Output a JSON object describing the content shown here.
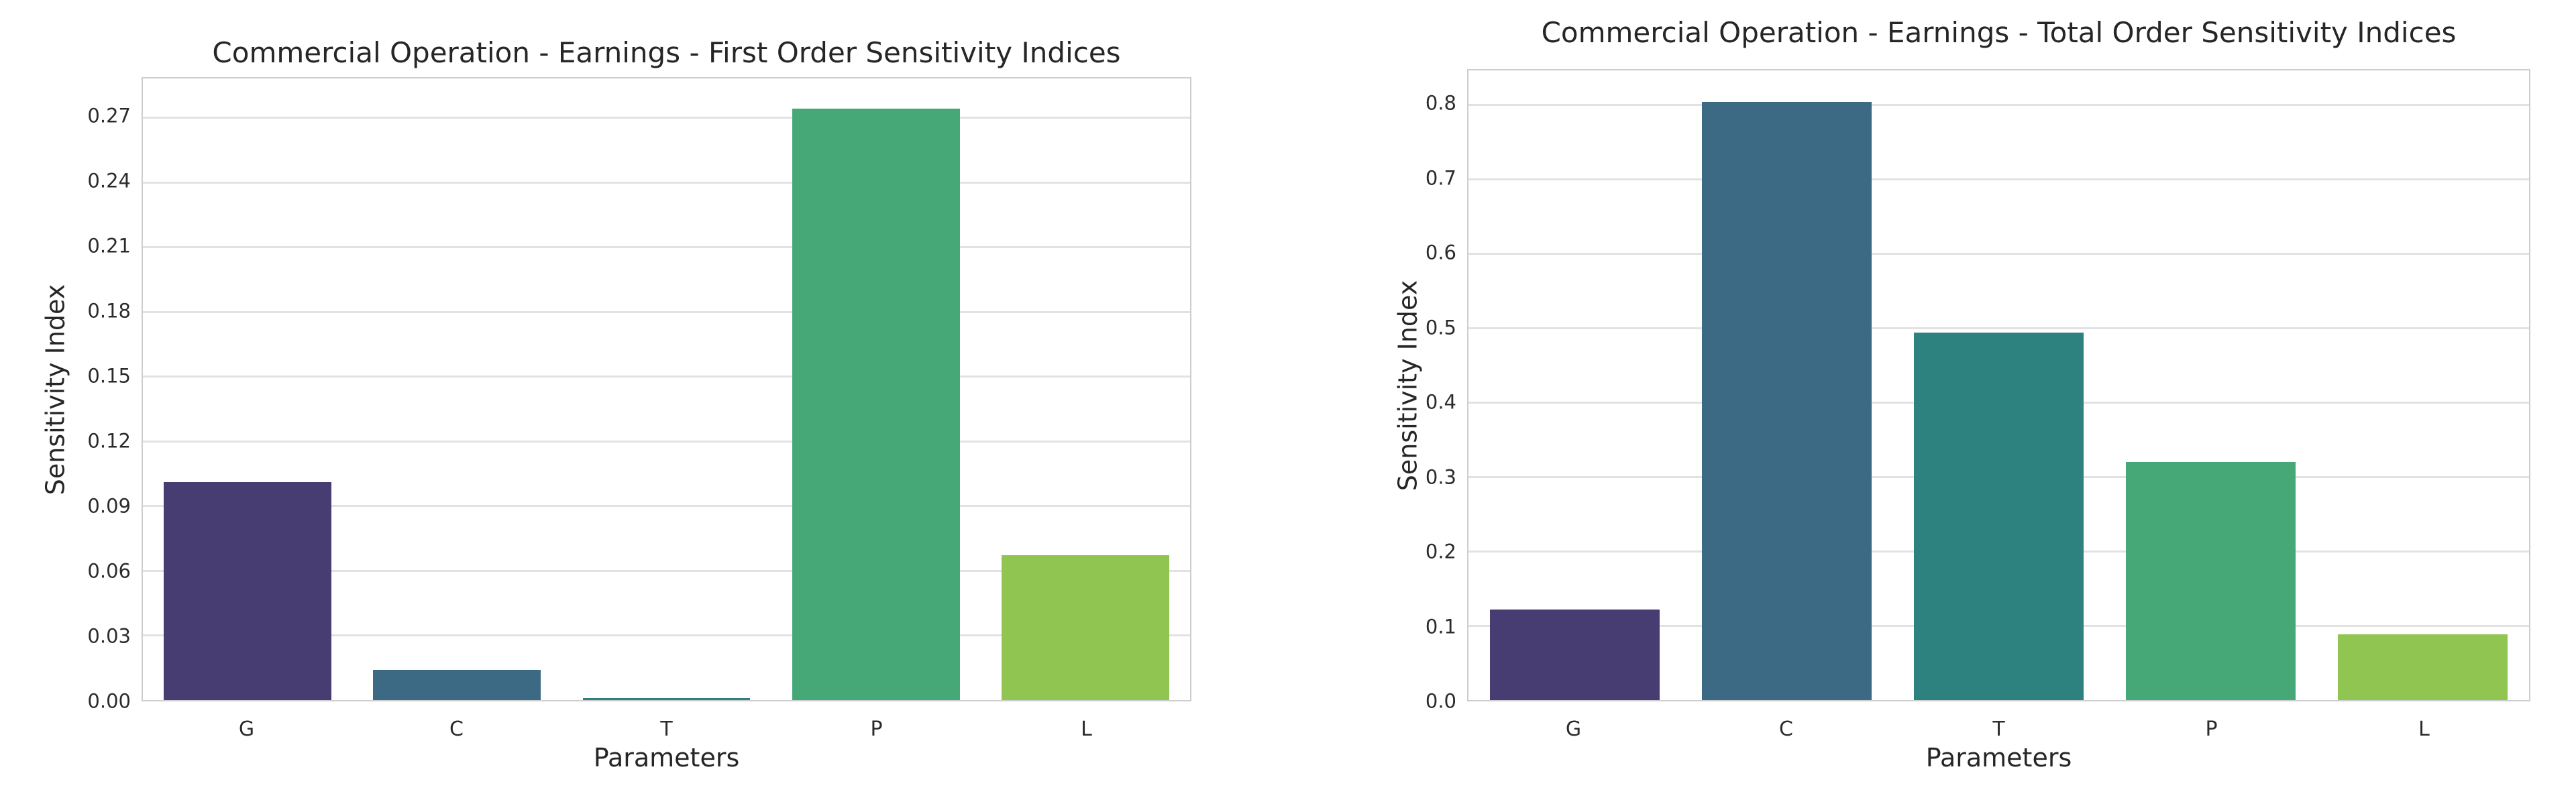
{
  "style": {
    "background": "#ffffff",
    "grid_color": "#e2e2e2",
    "spine_color": "#cdcdcd",
    "text_color": "#262626",
    "bar_palette_name": "viridis"
  },
  "chart_data": [
    {
      "type": "bar",
      "title": "Commercial Operation - Earnings - First Order Sensitivity Indices",
      "xlabel": "Parameters",
      "ylabel": "Sensitivity Index",
      "categories": [
        "G",
        "C",
        "T",
        "P",
        "L"
      ],
      "values": [
        0.101,
        0.014,
        0.001,
        0.274,
        0.067
      ],
      "bar_colors": [
        "#473d73",
        "#3c6a85",
        "#2d827f",
        "#45a876",
        "#91c551"
      ],
      "ylim": [
        0,
        0.288
      ],
      "yticks": [
        0.0,
        0.03,
        0.06,
        0.09,
        0.12,
        0.15,
        0.18,
        0.21,
        0.24,
        0.27
      ],
      "ytick_labels": [
        "0.00",
        "0.03",
        "0.06",
        "0.09",
        "0.12",
        "0.15",
        "0.18",
        "0.21",
        "0.24",
        "0.27"
      ],
      "grid": "horizontal",
      "legend": "none",
      "bar_width_fraction": 0.8
    },
    {
      "type": "bar",
      "title": "Commercial Operation - Earnings - Total Order Sensitivity Indices",
      "xlabel": "Parameters",
      "ylabel": "Sensitivity Index",
      "categories": [
        "G",
        "C",
        "T",
        "P",
        "L"
      ],
      "values": [
        0.122,
        0.804,
        0.494,
        0.32,
        0.088
      ],
      "bar_colors": [
        "#473d73",
        "#3c6a85",
        "#2d827f",
        "#45a876",
        "#91c551"
      ],
      "ylim": [
        0,
        0.846
      ],
      "yticks": [
        0.0,
        0.1,
        0.2,
        0.3,
        0.4,
        0.5,
        0.6,
        0.7,
        0.8
      ],
      "ytick_labels": [
        "0.0",
        "0.1",
        "0.2",
        "0.3",
        "0.4",
        "0.5",
        "0.6",
        "0.7",
        "0.8"
      ],
      "grid": "horizontal",
      "legend": "none",
      "bar_width_fraction": 0.8
    }
  ]
}
